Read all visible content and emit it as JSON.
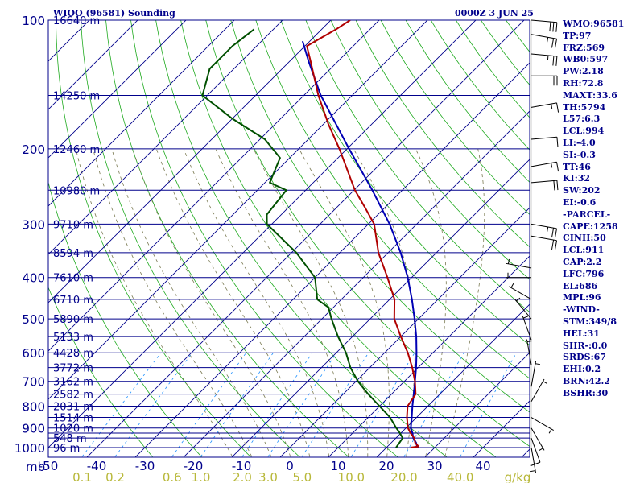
{
  "header": {
    "station": "WIOO (96581) Sounding",
    "datetime": "0000Z  3 JUN 25"
  },
  "chart_data": {
    "type": "skew-t log-p sounding",
    "colors": {
      "isobar": "#00008b",
      "isotherm": "#00008b",
      "dry_adiabat": "#1faa1f",
      "moist_adiabat": "#7a7a52",
      "mixing_ratio": "#1e90ff",
      "temperature": "#b00000",
      "dewpoint": "#005000",
      "parcel": "#0000b4",
      "wind": "#000000",
      "labels": "#00008b",
      "mixing_labels": "#b8b83a"
    },
    "pressure_axis": {
      "ylim_hpa": [
        1000,
        100
      ],
      "log_scale": true,
      "tick_labels": [
        {
          "p": 100,
          "label": "100"
        },
        {
          "p": 200,
          "label": "200"
        },
        {
          "p": 300,
          "label": "300"
        },
        {
          "p": 400,
          "label": "400"
        },
        {
          "p": 500,
          "label": "500"
        },
        {
          "p": 600,
          "label": "600"
        },
        {
          "p": 700,
          "label": "700"
        },
        {
          "p": 800,
          "label": "800"
        },
        {
          "p": 900,
          "label": "900"
        },
        {
          "p": 1000,
          "label": "1000"
        }
      ],
      "unit_label": "mb"
    },
    "isobar_levels_hpa": [
      100,
      150,
      200,
      250,
      300,
      350,
      400,
      450,
      500,
      550,
      600,
      650,
      700,
      750,
      800,
      850,
      900,
      925,
      950,
      1000
    ],
    "height_labels": [
      {
        "p": 100,
        "label": "16640 m"
      },
      {
        "p": 150,
        "label": "14250 m"
      },
      {
        "p": 200,
        "label": "12460 m"
      },
      {
        "p": 250,
        "label": "10980 m"
      },
      {
        "p": 300,
        "label": "9710 m"
      },
      {
        "p": 350,
        "label": "8594 m"
      },
      {
        "p": 400,
        "label": "7610 m"
      },
      {
        "p": 450,
        "label": "6710 m"
      },
      {
        "p": 500,
        "label": "5890 m"
      },
      {
        "p": 550,
        "label": "5133 m"
      },
      {
        "p": 600,
        "label": "4428 m"
      },
      {
        "p": 650,
        "label": "3772 m"
      },
      {
        "p": 700,
        "label": "3162 m"
      },
      {
        "p": 750,
        "label": "2582 m"
      },
      {
        "p": 800,
        "label": "2031 m"
      },
      {
        "p": 850,
        "label": "1514 m"
      },
      {
        "p": 900,
        "label": "1020 m"
      },
      {
        "p": 950,
        "label": "548 m"
      },
      {
        "p": 1000,
        "label": "96 m"
      }
    ],
    "temperature_axis": {
      "xlim_c": [
        -50,
        50
      ],
      "tick_labels": [
        {
          "t": -50,
          "label": "-50"
        },
        {
          "t": -40,
          "label": "-40"
        },
        {
          "t": -30,
          "label": "-30"
        },
        {
          "t": -20,
          "label": "-20"
        },
        {
          "t": -10,
          "label": "-10"
        },
        {
          "t": 0,
          "label": "0"
        },
        {
          "t": 10,
          "label": "10"
        },
        {
          "t": 20,
          "label": "20"
        },
        {
          "t": 30,
          "label": "30"
        },
        {
          "t": 40,
          "label": "40"
        }
      ]
    },
    "mixing_ratio_labels": {
      "values": [
        "0.1",
        "0.2",
        "0.6",
        "1.0",
        "2.0",
        "3.0",
        "5.0",
        "10.0",
        "20.0",
        "40.0"
      ],
      "unit": "g/kg"
    },
    "temperature_profile": [
      {
        "p": 1000,
        "t": 25.0
      },
      {
        "p": 994,
        "t": 26.4
      },
      {
        "p": 975,
        "t": 25.0
      },
      {
        "p": 950,
        "t": 23.8
      },
      {
        "p": 925,
        "t": 22.0
      },
      {
        "p": 900,
        "t": 20.4
      },
      {
        "p": 850,
        "t": 18.0
      },
      {
        "p": 800,
        "t": 15.8
      },
      {
        "p": 750,
        "t": 15.0
      },
      {
        "p": 700,
        "t": 12.2
      },
      {
        "p": 650,
        "t": 8.8
      },
      {
        "p": 600,
        "t": 4.8
      },
      {
        "p": 550,
        "t": 0.0
      },
      {
        "p": 500,
        "t": -5.0
      },
      {
        "p": 450,
        "t": -9.0
      },
      {
        "p": 400,
        "t": -15.0
      },
      {
        "p": 350,
        "t": -22.0
      },
      {
        "p": 300,
        "t": -28.8
      },
      {
        "p": 275,
        "t": -34.0
      },
      {
        "p": 250,
        "t": -39.8
      },
      {
        "p": 200,
        "t": -51.6
      },
      {
        "p": 175,
        "t": -59.0
      },
      {
        "p": 150,
        "t": -67.0
      },
      {
        "p": 125,
        "t": -75.6
      },
      {
        "p": 115,
        "t": -79.6
      },
      {
        "p": 105,
        "t": -77.0
      },
      {
        "p": 100,
        "t": -76.0
      }
    ],
    "dewpoint_profile": [
      {
        "p": 1000,
        "t": 22.0
      },
      {
        "p": 950,
        "t": 21.4
      },
      {
        "p": 925,
        "t": 19.8
      },
      {
        "p": 900,
        "t": 18.0
      },
      {
        "p": 850,
        "t": 14.5
      },
      {
        "p": 800,
        "t": 10.0
      },
      {
        "p": 750,
        "t": 5.2
      },
      {
        "p": 700,
        "t": 0.4
      },
      {
        "p": 650,
        "t": -4.0
      },
      {
        "p": 600,
        "t": -8.0
      },
      {
        "p": 550,
        "t": -13.0
      },
      {
        "p": 500,
        "t": -18.0
      },
      {
        "p": 470,
        "t": -21.0
      },
      {
        "p": 450,
        "t": -25.0
      },
      {
        "p": 400,
        "t": -30.0
      },
      {
        "p": 350,
        "t": -39.0
      },
      {
        "p": 300,
        "t": -51.0
      },
      {
        "p": 285,
        "t": -53.0
      },
      {
        "p": 250,
        "t": -54.0
      },
      {
        "p": 240,
        "t": -59.0
      },
      {
        "p": 210,
        "t": -62.0
      },
      {
        "p": 190,
        "t": -69.0
      },
      {
        "p": 170,
        "t": -80.0
      },
      {
        "p": 150,
        "t": -91.0
      },
      {
        "p": 130,
        "t": -95.0
      },
      {
        "p": 115,
        "t": -95.0
      },
      {
        "p": 105,
        "t": -94.0
      }
    ],
    "parcel_profile": [
      {
        "p": 1000,
        "t": 26.4
      },
      {
        "p": 975,
        "t": 25.2
      },
      {
        "p": 950,
        "t": 23.6
      },
      {
        "p": 925,
        "t": 22.4
      },
      {
        "p": 900,
        "t": 21.0
      },
      {
        "p": 850,
        "t": 19.0
      },
      {
        "p": 800,
        "t": 16.8
      },
      {
        "p": 750,
        "t": 14.6
      },
      {
        "p": 700,
        "t": 12.2
      },
      {
        "p": 650,
        "t": 9.6
      },
      {
        "p": 600,
        "t": 6.6
      },
      {
        "p": 550,
        "t": 3.2
      },
      {
        "p": 500,
        "t": -0.8
      },
      {
        "p": 450,
        "t": -5.4
      },
      {
        "p": 400,
        "t": -10.8
      },
      {
        "p": 350,
        "t": -17.4
      },
      {
        "p": 300,
        "t": -25.6
      },
      {
        "p": 250,
        "t": -36.2
      },
      {
        "p": 200,
        "t": -49.6
      },
      {
        "p": 150,
        "t": -66.5
      },
      {
        "p": 125,
        "t": -76.0
      },
      {
        "p": 112,
        "t": -81.5
      }
    ],
    "wind_barbs": [
      {
        "p": 100,
        "dir": 95,
        "spd": 30
      },
      {
        "p": 108,
        "dir": 100,
        "spd": 25
      },
      {
        "p": 120,
        "dir": 95,
        "spd": 25
      },
      {
        "p": 135,
        "dir": 90,
        "spd": 20
      },
      {
        "p": 160,
        "dir": 80,
        "spd": 15
      },
      {
        "p": 190,
        "dir": 85,
        "spd": 10
      },
      {
        "p": 220,
        "dir": 80,
        "spd": 15
      },
      {
        "p": 240,
        "dir": 85,
        "spd": 20
      },
      {
        "p": 300,
        "dir": 100,
        "spd": 25
      },
      {
        "p": 320,
        "dir": 100,
        "spd": 20
      },
      {
        "p": 380,
        "dir": 280,
        "spd": 5
      },
      {
        "p": 400,
        "dir": 270,
        "spd": 5
      },
      {
        "p": 450,
        "dir": 300,
        "spd": 5
      },
      {
        "p": 500,
        "dir": 320,
        "spd": 5
      },
      {
        "p": 560,
        "dir": 340,
        "spd": 5
      },
      {
        "p": 640,
        "dir": 350,
        "spd": 5
      },
      {
        "p": 720,
        "dir": 10,
        "spd": 5
      },
      {
        "p": 780,
        "dir": 30,
        "spd": 5
      },
      {
        "p": 850,
        "dir": 120,
        "spd": 5
      },
      {
        "p": 900,
        "dir": 150,
        "spd": 5
      },
      {
        "p": 950,
        "dir": 160,
        "spd": 10
      },
      {
        "p": 1000,
        "dir": 170,
        "spd": 5
      }
    ]
  },
  "indices": [
    "WMO:96581",
    "TP:97",
    "FRZ:569",
    "WB0:597",
    "PW:2.18",
    "RH:72.8",
    "MAXT:33.6",
    "TH:5794",
    "L57:6.3",
    "LCL:994",
    "LI:-4.0",
    "SI:-0.3",
    "TT:46",
    "KI:32",
    "SW:202",
    "EI:-0.6",
    "-PARCEL-",
    "CAPE:1258",
    "CINH:50",
    "LCL:911",
    "CAP:2.2",
    "LFC:796",
    "EL:686",
    "MPL:96",
    "-WIND-",
    "STM:349/8",
    "HEL:31",
    "SHR-:0.0",
    "SRDS:67",
    "EHI:0.2",
    "BRN:42.2",
    "BSHR:30"
  ]
}
